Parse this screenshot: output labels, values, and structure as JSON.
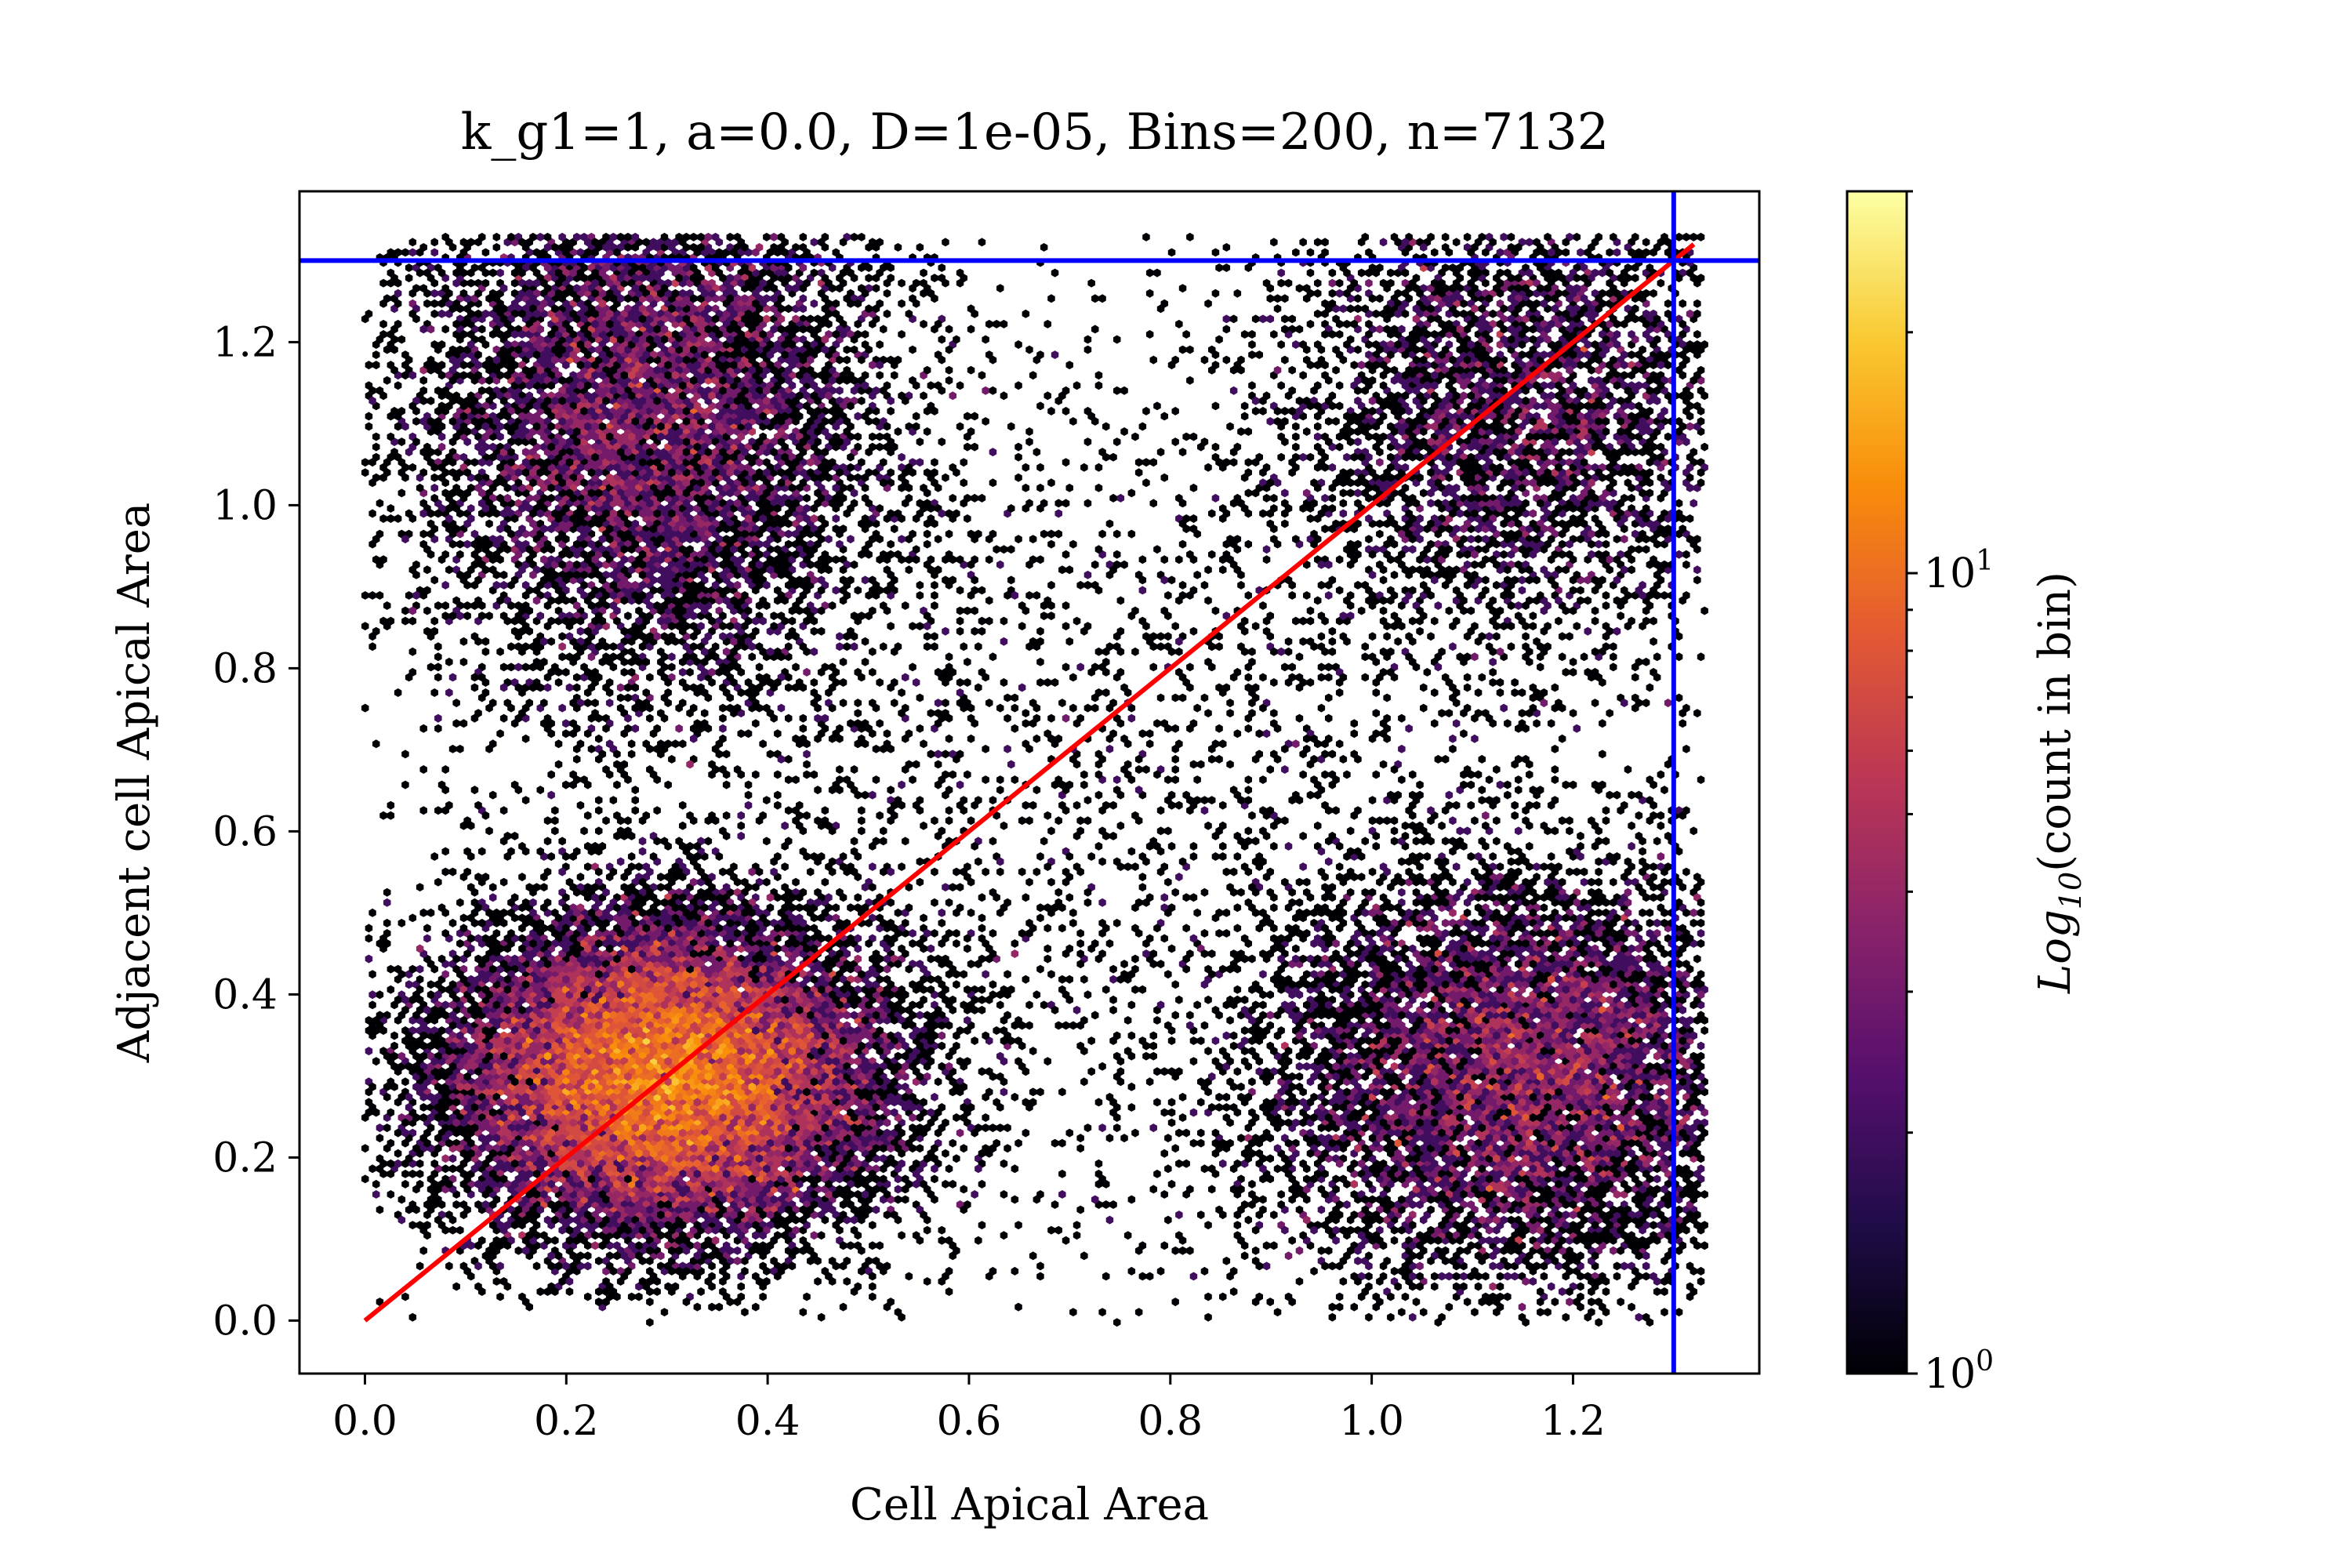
{
  "chart_data": {
    "type": "heatmap",
    "subtype": "hexbin",
    "title": "k_g1=1, a=0.0, D=1e-05, Bins=200, n=7132",
    "xlabel": "Cell Apical Area",
    "ylabel": "Adjacent cell Apical Area",
    "xlim": [
      -0.065,
      1.385
    ],
    "ylim": [
      -0.065,
      1.385
    ],
    "xticks": [
      "0.0",
      "0.2",
      "0.4",
      "0.6",
      "0.8",
      "1.0",
      "1.2"
    ],
    "yticks": [
      "0.0",
      "0.2",
      "0.4",
      "0.6",
      "0.8",
      "1.0",
      "1.2"
    ],
    "x_tick_values": [
      0.0,
      0.2,
      0.4,
      0.6,
      0.8,
      1.0,
      1.2
    ],
    "y_tick_values": [
      0.0,
      0.2,
      0.4,
      0.6,
      0.8,
      1.0,
      1.2
    ],
    "n": 7132,
    "bins": 200,
    "colormap": "inferno",
    "colorbar": {
      "label": "Log10(count in bin)",
      "label_main": "Log",
      "label_sub": "10",
      "label_rest": "(count in bin)",
      "scale": "log",
      "range": [
        1,
        30
      ],
      "tick_labels": [
        {
          "base": "10",
          "exp": "0"
        },
        {
          "base": "10",
          "exp": "1"
        }
      ]
    },
    "density_clusters": [
      {
        "x": 0.3,
        "y": 0.3,
        "sx": 0.11,
        "sy": 0.1,
        "weight": 0.42
      },
      {
        "x": 0.28,
        "y": 1.12,
        "sx": 0.12,
        "sy": 0.17,
        "weight": 0.2
      },
      {
        "x": 1.15,
        "y": 0.3,
        "sx": 0.13,
        "sy": 0.13,
        "weight": 0.2
      },
      {
        "x": 1.15,
        "y": 1.12,
        "sx": 0.12,
        "sy": 0.15,
        "weight": 0.1
      },
      {
        "x": 0.65,
        "y": 0.65,
        "sx": 0.35,
        "sy": 0.35,
        "weight": 0.08
      }
    ],
    "data_clip": [
      0.0,
      1.33
    ],
    "reference_lines": [
      {
        "type": "diagonal",
        "from": [
          0.0,
          0.0
        ],
        "to": [
          1.32,
          1.32
        ],
        "color": "#ff0000"
      },
      {
        "type": "vertical",
        "x": 1.3,
        "color": "#0000ff"
      },
      {
        "type": "horizontal",
        "y": 1.3,
        "color": "#0000ff"
      }
    ]
  }
}
